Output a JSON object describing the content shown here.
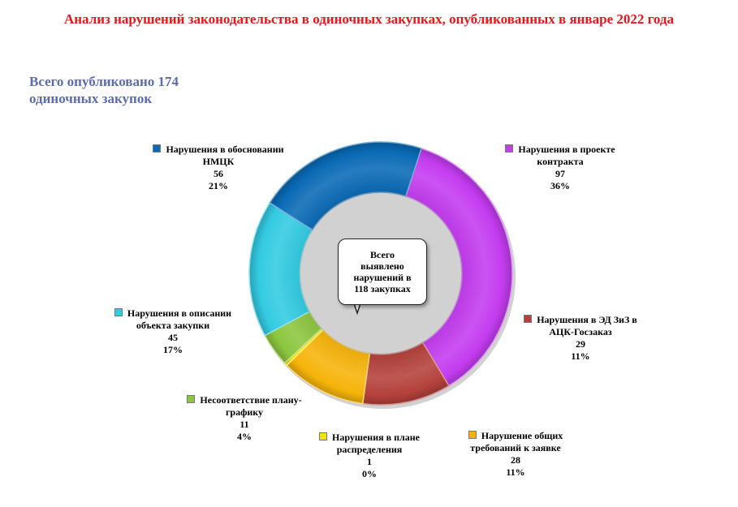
{
  "chart_data": {
    "type": "pie",
    "title": "Анализ нарушений законодательства в одиночных закупках, опубликованных в январе 2022 года",
    "subtitle": [
      "Всего опубликовано 174",
      "одиночных закупок"
    ],
    "center_text": [
      "Всего",
      "выявлено",
      "нарушений в",
      "118 закупках"
    ],
    "slices": [
      {
        "name": "Нарушения в проекте контракта",
        "label_lines": [
          "Нарушения в проекте",
          "контракта"
        ],
        "value": 97,
        "percent": "36%",
        "color": "#c43cf0"
      },
      {
        "name": "Нарушения в ЭД ЗиЗ в АЦК-Госзаказ",
        "label_lines": [
          "Нарушения в ЭД ЗиЗ в",
          "АЦК-Госзаказ"
        ],
        "value": 29,
        "percent": "11%",
        "color": "#b4413c"
      },
      {
        "name": "Нарушение общих требований к заявке",
        "label_lines": [
          "Нарушение общих",
          "требований к заявке"
        ],
        "value": 28,
        "percent": "11%",
        "color": "#f6b40a"
      },
      {
        "name": "Нарушения в плане распределения",
        "label_lines": [
          "Нарушения в плане",
          "распределения"
        ],
        "value": 1,
        "percent": "0%",
        "color": "#f1e40c"
      },
      {
        "name": "Несоответствие плану-графику",
        "label_lines": [
          "Несоответствие плану-",
          "графику"
        ],
        "value": 11,
        "percent": "4%",
        "color": "#8cc63f"
      },
      {
        "name": "Нарушения в описании объекта закупки",
        "label_lines": [
          "Нарушения в описании",
          "объекта закупки"
        ],
        "value": 45,
        "percent": "17%",
        "color": "#33cbe2"
      },
      {
        "name": "Нарушения в обосновании НМЦК",
        "label_lines": [
          "Нарушения в обосновании",
          "НМЦК"
        ],
        "value": 56,
        "percent": "21%",
        "color": "#0a6ab5"
      }
    ]
  }
}
